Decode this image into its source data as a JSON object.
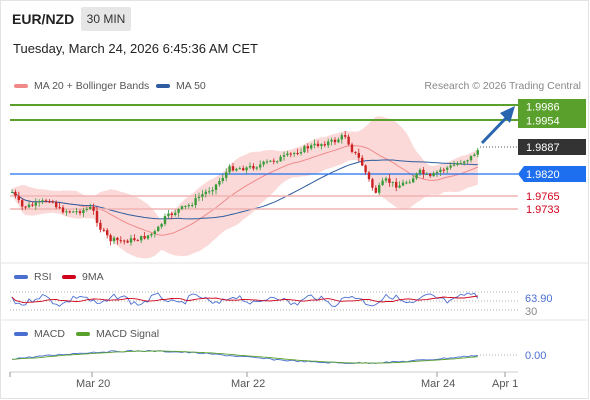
{
  "header": {
    "pair": "EUR/NZD",
    "timeframe": "30 MIN",
    "datetime": "Tuesday, March 24, 2026 6:45:36 AM CET",
    "copyright": "Research © 2026 Trading Central"
  },
  "legend_price": [
    {
      "label": "MA 20 + Bollinger Bands",
      "color": "#f08a8a"
    },
    {
      "label": "MA 50",
      "color": "#2e5c9e"
    }
  ],
  "legend_rsi": [
    {
      "label": "RSI",
      "color": "#4a6fd1"
    },
    {
      "label": "9MA",
      "color": "#d0021b"
    }
  ],
  "legend_macd": [
    {
      "label": "MACD",
      "color": "#4a6fd1"
    },
    {
      "label": "MACD Signal",
      "color": "#5aa02c"
    }
  ],
  "price_levels": [
    {
      "value": "1.9986",
      "kind": "resistance",
      "color": "#5aa02c",
      "text_color": "#ffffff"
    },
    {
      "value": "1.9954",
      "kind": "resistance",
      "color": "#5aa02c",
      "text_color": "#ffffff"
    },
    {
      "value": "1.9887",
      "kind": "current",
      "color": "#333333",
      "text_color": "#ffffff"
    },
    {
      "value": "1.9820",
      "kind": "pivot",
      "color": "#1e6ff0",
      "text_color": "#ffffff"
    },
    {
      "value": "1.9765",
      "kind": "support",
      "color": "#f2b4b4",
      "text_color": "#d0021b"
    },
    {
      "value": "1.9733",
      "kind": "support",
      "color": "#f2b4b4",
      "text_color": "#d0021b"
    }
  ],
  "rsi": {
    "value": "63.90",
    "ref_level": "30"
  },
  "macd": {
    "value": "0.00"
  },
  "x_axis": [
    "Mar 20",
    "Mar 22",
    "Mar 24",
    "Apr 1"
  ],
  "colors": {
    "bull": "#3a9b3a",
    "bear": "#cc2222",
    "band": "#fbd9d9",
    "arrow": "#2a65b0"
  },
  "icons": [
    "trend-arrow-icon"
  ]
}
